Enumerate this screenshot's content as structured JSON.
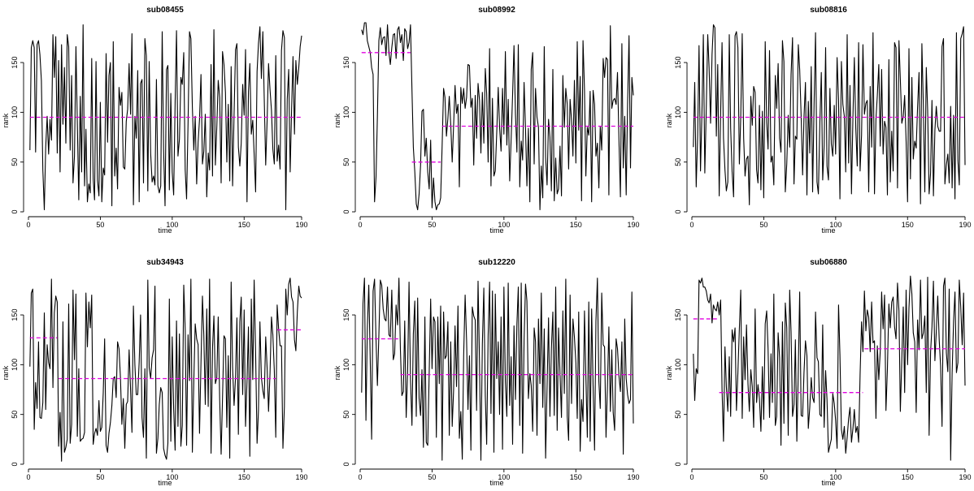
{
  "chart_data": [
    {
      "type": "line",
      "title": "sub08455",
      "xlabel": "time",
      "ylabel": "rank",
      "xlim": [
        0,
        190
      ],
      "ylim": [
        0,
        190
      ],
      "xticks": [
        0,
        50,
        100,
        150,
        190
      ],
      "yticks": [
        0,
        50,
        100,
        150
      ],
      "grid": false,
      "x_start": 1,
      "values": [
        62,
        165,
        172,
        165,
        60,
        168,
        172,
        158,
        132,
        42,
        2,
        65,
        96,
        58,
        93,
        72,
        178,
        135,
        176,
        59,
        152,
        40,
        168,
        88,
        145,
        69,
        178,
        166,
        62,
        137,
        29,
        56,
        166,
        90,
        12,
        116,
        40,
        188,
        26,
        83,
        10,
        28,
        19,
        154,
        33,
        12,
        151,
        32,
        16,
        110,
        10,
        44,
        37,
        159,
        70,
        137,
        150,
        6,
        171,
        36,
        64,
        23,
        125,
        107,
        120,
        45,
        43,
        91,
        103,
        149,
        98,
        179,
        7,
        96,
        74,
        142,
        10,
        129,
        133,
        29,
        174,
        157,
        21,
        151,
        59,
        30,
        36,
        27,
        133,
        26,
        19,
        26,
        181,
        63,
        6,
        143,
        147,
        22,
        119,
        40,
        17,
        109,
        182,
        56,
        73,
        135,
        128,
        160,
        42,
        13,
        89,
        181,
        174,
        105,
        62,
        96,
        28,
        70,
        93,
        138,
        48,
        61,
        98,
        15,
        59,
        42,
        148,
        36,
        183,
        47,
        86,
        132,
        115,
        29,
        161,
        148,
        120,
        50,
        108,
        31,
        146,
        26,
        98,
        163,
        169,
        65,
        46,
        69,
        128,
        97,
        163,
        10,
        121,
        149,
        78,
        92,
        58,
        20,
        141,
        169,
        186,
        134,
        181,
        114,
        47,
        93,
        149,
        123,
        102,
        63,
        48,
        157,
        51,
        67,
        43,
        162,
        182,
        175,
        2,
        113,
        143,
        40,
        101,
        156,
        78,
        152,
        128,
        145,
        166,
        177
      ],
      "segments": [
        {
          "x": [
            1,
            190
          ],
          "mean": 95
        }
      ]
    },
    {
      "type": "line",
      "title": "sub08992",
      "xlabel": "time",
      "ylabel": "rank",
      "xlim": [
        0,
        190
      ],
      "ylim": [
        0,
        190
      ],
      "xticks": [
        0,
        50,
        100,
        150,
        190
      ],
      "yticks": [
        0,
        50,
        100,
        150
      ],
      "grid": false,
      "x_start": 1,
      "values": [
        183,
        178,
        190,
        190,
        172,
        166,
        160,
        145,
        138,
        10,
        35,
        96,
        172,
        185,
        168,
        175,
        176,
        157,
        188,
        160,
        148,
        165,
        178,
        179,
        154,
        183,
        186,
        170,
        178,
        152,
        184,
        181,
        164,
        170,
        188,
        123,
        65,
        40,
        8,
        2,
        18,
        47,
        101,
        103,
        56,
        74,
        40,
        23,
        72,
        4,
        34,
        10,
        2,
        7,
        8,
        14,
        66,
        124,
        115,
        76,
        94,
        116,
        88,
        50,
        86,
        127,
        99,
        108,
        25,
        125,
        109,
        124,
        104,
        115,
        148,
        147,
        105,
        114,
        47,
        117,
        74,
        129,
        112,
        59,
        120,
        69,
        144,
        119,
        50,
        164,
        26,
        114,
        36,
        41,
        80,
        125,
        85,
        61,
        124,
        78,
        161,
        67,
        113,
        31,
        73,
        118,
        167,
        98,
        60,
        168,
        25,
        71,
        52,
        130,
        83,
        26,
        84,
        10,
        143,
        160,
        48,
        124,
        95,
        85,
        2,
        46,
        14,
        166,
        55,
        27,
        93,
        75,
        21,
        143,
        11,
        54,
        18,
        23,
        66,
        16,
        137,
        85,
        124,
        108,
        43,
        113,
        92,
        56,
        132,
        49,
        171,
        82,
        136,
        11,
        172,
        123,
        36,
        85,
        77,
        121,
        10,
        122,
        108,
        56,
        69,
        24,
        86,
        62,
        154,
        135,
        155,
        153,
        17,
        187,
        104,
        112,
        114,
        108,
        140,
        72,
        15,
        169,
        44,
        96,
        17,
        108,
        177,
        44,
        135,
        117
      ],
      "segments": [
        {
          "x": [
            1,
            35
          ],
          "mean": 160
        },
        {
          "x": [
            36,
            56
          ],
          "mean": 50
        },
        {
          "x": [
            57,
            190
          ],
          "mean": 86
        }
      ]
    },
    {
      "type": "line",
      "title": "sub08816",
      "xlabel": "time",
      "ylabel": "rank",
      "xlim": [
        0,
        190
      ],
      "ylim": [
        0,
        190
      ],
      "xticks": [
        0,
        50,
        100,
        150,
        190
      ],
      "yticks": [
        0,
        50,
        100,
        150
      ],
      "grid": false,
      "x_start": 1,
      "values": [
        65,
        130,
        25,
        77,
        167,
        41,
        100,
        178,
        39,
        104,
        178,
        144,
        89,
        158,
        188,
        185,
        76,
        148,
        16,
        100,
        170,
        74,
        42,
        21,
        30,
        178,
        84,
        40,
        15,
        177,
        181,
        165,
        48,
        95,
        179,
        74,
        36,
        53,
        56,
        7,
        116,
        87,
        126,
        120,
        42,
        29,
        107,
        22,
        101,
        14,
        171,
        90,
        63,
        162,
        50,
        56,
        27,
        137,
        104,
        149,
        74,
        60,
        172,
        151,
        20,
        48,
        97,
        65,
        138,
        175,
        28,
        76,
        73,
        168,
        143,
        96,
        37,
        95,
        130,
        17,
        111,
        59,
        146,
        20,
        108,
        180,
        30,
        18,
        89,
        140,
        32,
        67,
        165,
        46,
        32,
        124,
        68,
        56,
        107,
        58,
        155,
        112,
        13,
        151,
        108,
        96,
        40,
        178,
        49,
        127,
        18,
        96,
        155,
        84,
        46,
        170,
        41,
        77,
        168,
        98,
        109,
        112,
        20,
        126,
        65,
        180,
        18,
        93,
        117,
        148,
        66,
        143,
        58,
        91,
        85,
        17,
        153,
        30,
        81,
        41,
        170,
        165,
        24,
        172,
        133,
        89,
        96,
        117,
        71,
        10,
        164,
        33,
        135,
        53,
        71,
        64,
        105,
        140,
        8,
        169,
        107,
        20,
        145,
        102,
        18,
        39,
        112,
        16,
        82,
        106,
        86,
        81,
        81,
        166,
        174,
        28,
        47,
        58,
        29,
        106,
        24,
        97,
        13,
        180,
        52,
        27,
        174,
        179,
        186,
        47
      ],
      "segments": [
        {
          "x": [
            1,
            190
          ],
          "mean": 95
        }
      ]
    },
    {
      "type": "line",
      "title": "sub34943",
      "xlabel": "time",
      "ylabel": "rank",
      "xlim": [
        0,
        190
      ],
      "ylim": [
        0,
        190
      ],
      "xticks": [
        0,
        50,
        100,
        150,
        190
      ],
      "yticks": [
        0,
        50,
        100,
        150
      ],
      "grid": false,
      "x_start": 1,
      "values": [
        98,
        172,
        176,
        35,
        82,
        56,
        123,
        47,
        46,
        62,
        152,
        55,
        120,
        102,
        96,
        186,
        77,
        152,
        169,
        163,
        18,
        52,
        3,
        143,
        12,
        17,
        25,
        161,
        21,
        40,
        175,
        105,
        171,
        28,
        96,
        23,
        25,
        26,
        32,
        172,
        118,
        163,
        137,
        170,
        20,
        31,
        36,
        29,
        64,
        33,
        37,
        72,
        126,
        19,
        12,
        31,
        42,
        59,
        86,
        88,
        67,
        123,
        116,
        86,
        40,
        66,
        16,
        60,
        63,
        115,
        75,
        32,
        159,
        100,
        70,
        70,
        103,
        150,
        47,
        27,
        96,
        6,
        185,
        97,
        86,
        107,
        115,
        179,
        11,
        26,
        60,
        77,
        72,
        16,
        9,
        5,
        21,
        166,
        23,
        128,
        56,
        14,
        144,
        38,
        131,
        18,
        39,
        180,
        135,
        19,
        130,
        84,
        186,
        12,
        84,
        141,
        126,
        120,
        31,
        102,
        169,
        130,
        60,
        156,
        58,
        186,
        11,
        117,
        149,
        81,
        87,
        148,
        65,
        10,
        67,
        129,
        126,
        37,
        109,
        6,
        183,
        97,
        59,
        87,
        147,
        30,
        143,
        168,
        70,
        155,
        38,
        83,
        138,
        8,
        166,
        85,
        185,
        112,
        21,
        54,
        143,
        87,
        74,
        66,
        128,
        96,
        53,
        91,
        148,
        130,
        94,
        27,
        160,
        136,
        119,
        119,
        16,
        58,
        176,
        150,
        181,
        187,
        168,
        163,
        125,
        114,
        153,
        179,
        169,
        167
      ],
      "segments": [
        {
          "x": [
            1,
            20
          ],
          "mean": 127
        },
        {
          "x": [
            21,
            172
          ],
          "mean": 86
        },
        {
          "x": [
            173,
            190
          ],
          "mean": 135
        }
      ]
    },
    {
      "type": "line",
      "title": "sub12220",
      "xlabel": "time",
      "ylabel": "rank",
      "xlim": [
        0,
        190
      ],
      "ylim": [
        0,
        190
      ],
      "xticks": [
        0,
        50,
        100,
        150,
        190
      ],
      "yticks": [
        0,
        50,
        100,
        150
      ],
      "grid": false,
      "x_start": 1,
      "values": [
        72,
        162,
        187,
        44,
        136,
        180,
        104,
        25,
        174,
        186,
        125,
        79,
        130,
        185,
        180,
        156,
        146,
        144,
        178,
        130,
        128,
        175,
        105,
        111,
        160,
        140,
        187,
        115,
        69,
        73,
        144,
        47,
        94,
        183,
        85,
        39,
        131,
        164,
        48,
        167,
        66,
        49,
        95,
        17,
        148,
        22,
        19,
        92,
        166,
        96,
        148,
        143,
        27,
        148,
        81,
        159,
        4,
        153,
        106,
        109,
        143,
        29,
        123,
        38,
        74,
        139,
        78,
        159,
        26,
        53,
        5,
        109,
        170,
        124,
        55,
        109,
        14,
        158,
        149,
        145,
        54,
        184,
        101,
        4,
        121,
        177,
        69,
        20,
        129,
        183,
        51,
        174,
        12,
        171,
        86,
        123,
        50,
        148,
        15,
        178,
        83,
        48,
        182,
        59,
        108,
        20,
        139,
        65,
        141,
        178,
        39,
        182,
        11,
        124,
        181,
        164,
        66,
        91,
        79,
        33,
        137,
        123,
        29,
        146,
        81,
        172,
        57,
        136,
        6,
        78,
        147,
        48,
        116,
        153,
        49,
        178,
        34,
        137,
        91,
        47,
        154,
        71,
        186,
        48,
        24,
        170,
        61,
        146,
        128,
        102,
        46,
        153,
        13,
        65,
        43,
        154,
        89,
        27,
        163,
        23,
        156,
        79,
        14,
        144,
        187,
        83,
        56,
        172,
        120,
        118,
        27,
        80,
        138,
        53,
        115,
        52,
        34,
        126,
        116,
        89,
        73,
        123,
        10,
        146,
        86,
        70,
        61,
        65,
        173,
        41
      ],
      "segments": [
        {
          "x": [
            1,
            27
          ],
          "mean": 126
        },
        {
          "x": [
            28,
            190
          ],
          "mean": 90
        }
      ]
    },
    {
      "type": "line",
      "title": "sub06880",
      "xlabel": "time",
      "ylabel": "rank",
      "xlim": [
        0,
        190
      ],
      "ylim": [
        0,
        190
      ],
      "xticks": [
        0,
        50,
        100,
        150,
        190
      ],
      "yticks": [
        0,
        50,
        100,
        150
      ],
      "grid": false,
      "x_start": 1,
      "values": [
        111,
        64,
        96,
        91,
        185,
        182,
        187,
        178,
        178,
        174,
        165,
        162,
        171,
        142,
        160,
        156,
        154,
        163,
        150,
        165,
        75,
        23,
        118,
        78,
        53,
        108,
        48,
        135,
        123,
        137,
        54,
        92,
        136,
        175,
        46,
        128,
        85,
        140,
        81,
        53,
        95,
        78,
        37,
        156,
        62,
        80,
        66,
        33,
        98,
        45,
        141,
        154,
        116,
        47,
        111,
        62,
        171,
        39,
        48,
        132,
        107,
        19,
        143,
        41,
        162,
        137,
        29,
        175,
        133,
        48,
        60,
        125,
        23,
        94,
        173,
        49,
        48,
        92,
        124,
        109,
        36,
        57,
        87,
        67,
        62,
        153,
        107,
        103,
        50,
        48,
        140,
        37,
        94,
        65,
        12,
        19,
        25,
        71,
        61,
        44,
        16,
        160,
        110,
        35,
        25,
        38,
        11,
        27,
        46,
        57,
        22,
        36,
        55,
        32,
        38,
        22,
        90,
        143,
        113,
        174,
        134,
        155,
        148,
        113,
        163,
        122,
        124,
        46,
        119,
        85,
        114,
        173,
        136,
        170,
        54,
        96,
        161,
        137,
        163,
        168,
        138,
        126,
        182,
        154,
        53,
        105,
        158,
        72,
        175,
        100,
        157,
        189,
        171,
        132,
        123,
        52,
        145,
        115,
        185,
        126,
        132,
        149,
        72,
        188,
        29,
        113,
        138,
        184,
        104,
        133,
        169,
        125,
        99,
        38,
        179,
        187,
        112,
        93,
        176,
        4,
        92,
        144,
        173,
        92,
        102,
        185,
        158,
        120,
        172,
        79
      ],
      "segments": [
        {
          "x": [
            1,
            18
          ],
          "mean": 146
        },
        {
          "x": [
            19,
            119
          ],
          "mean": 72
        },
        {
          "x": [
            120,
            190
          ],
          "mean": 116
        }
      ]
    }
  ],
  "colors": {
    "series": "#000000",
    "segment_mean": "#e000e0",
    "axis": "#000000",
    "background": "#ffffff"
  }
}
